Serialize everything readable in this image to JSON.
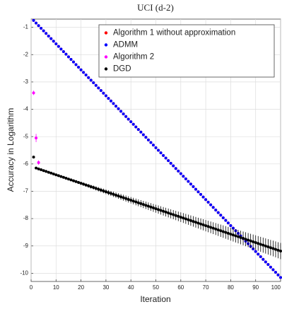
{
  "chart_data": {
    "type": "scatter",
    "title": "UCI (d-2)",
    "x_label": "Iteration",
    "y_label": "Accuracy in Logarithm",
    "xlim": [
      0,
      100
    ],
    "ylim": [
      -10.3,
      -0.7
    ],
    "xticks": [
      0,
      10,
      20,
      30,
      40,
      50,
      60,
      70,
      80,
      90,
      100
    ],
    "yticks": [
      -1,
      -2,
      -3,
      -4,
      -5,
      -6,
      -7,
      -8,
      -9,
      -10
    ],
    "grid": true,
    "legend": "top-right",
    "x": [
      1,
      2,
      3,
      4,
      5,
      6,
      7,
      8,
      9,
      10,
      11,
      12,
      13,
      14,
      15,
      16,
      17,
      18,
      19,
      20,
      21,
      22,
      23,
      24,
      25,
      26,
      27,
      28,
      29,
      30,
      31,
      32,
      33,
      34,
      35,
      36,
      37,
      38,
      39,
      40,
      41,
      42,
      43,
      44,
      45,
      46,
      47,
      48,
      49,
      50,
      51,
      52,
      53,
      54,
      55,
      56,
      57,
      58,
      59,
      60,
      61,
      62,
      63,
      64,
      65,
      66,
      67,
      68,
      69,
      70,
      71,
      72,
      73,
      74,
      75,
      76,
      77,
      78,
      79,
      80,
      81,
      82,
      83,
      84,
      85,
      86,
      87,
      88,
      89,
      90,
      91,
      92,
      93,
      94,
      95,
      96,
      97,
      98,
      99,
      100
    ],
    "series": [
      {
        "name": "Algorithm 1 without approximation",
        "color": "#ff0000",
        "values": [
          -0.75,
          -0.845,
          -0.94,
          -1.035,
          -1.13,
          -1.225,
          -1.32,
          -1.415,
          -1.51,
          -1.605,
          -1.7,
          -1.795,
          -1.89,
          -1.985,
          -2.08,
          -2.175,
          -2.27,
          -2.365,
          -2.46,
          -2.555,
          -2.65,
          -2.745,
          -2.84,
          -2.935,
          -3.03,
          -3.125,
          -3.22,
          -3.315,
          -3.41,
          -3.505,
          -3.6,
          -3.695,
          -3.79,
          -3.885,
          -3.98,
          -4.075,
          -4.17,
          -4.265,
          -4.36,
          -4.455,
          -4.55,
          -4.645,
          -4.74,
          -4.835,
          -4.93,
          -5.025,
          -5.12,
          -5.215,
          -5.31,
          -5.405,
          -5.5,
          -5.595,
          -5.69,
          -5.785,
          -5.88,
          -5.975,
          -6.07,
          -6.165,
          -6.26,
          -6.355,
          -6.45,
          -6.545,
          -6.64,
          -6.735,
          -6.83,
          -6.925,
          -7.02,
          -7.115,
          -7.21,
          -7.305,
          -7.4,
          -7.495,
          -7.59,
          -7.685,
          -7.78,
          -7.875,
          -7.97,
          -8.065,
          -8.16,
          -8.255,
          -8.35,
          -8.445,
          -8.54,
          -8.635,
          -8.73,
          -8.825,
          -8.92,
          -9.015,
          -9.11,
          -9.205,
          -9.3,
          -9.395,
          -9.49,
          -9.585,
          -9.68,
          -9.775,
          -9.87,
          -9.965,
          -10.06,
          -10.155
        ]
      },
      {
        "name": "ADMM",
        "color": "#0000ff",
        "values": [
          -0.75,
          -0.845,
          -0.94,
          -1.035,
          -1.13,
          -1.225,
          -1.32,
          -1.415,
          -1.51,
          -1.605,
          -1.7,
          -1.795,
          -1.89,
          -1.985,
          -2.08,
          -2.175,
          -2.27,
          -2.365,
          -2.46,
          -2.555,
          -2.65,
          -2.745,
          -2.84,
          -2.935,
          -3.03,
          -3.125,
          -3.22,
          -3.315,
          -3.41,
          -3.505,
          -3.6,
          -3.695,
          -3.79,
          -3.885,
          -3.98,
          -4.075,
          -4.17,
          -4.265,
          -4.36,
          -4.455,
          -4.55,
          -4.645,
          -4.74,
          -4.835,
          -4.93,
          -5.025,
          -5.12,
          -5.215,
          -5.31,
          -5.405,
          -5.5,
          -5.595,
          -5.69,
          -5.785,
          -5.88,
          -5.975,
          -6.07,
          -6.165,
          -6.26,
          -6.355,
          -6.45,
          -6.545,
          -6.64,
          -6.735,
          -6.83,
          -6.925,
          -7.02,
          -7.115,
          -7.21,
          -7.305,
          -7.4,
          -7.495,
          -7.59,
          -7.685,
          -7.78,
          -7.875,
          -7.97,
          -8.065,
          -8.16,
          -8.255,
          -8.35,
          -8.445,
          -8.54,
          -8.635,
          -8.73,
          -8.825,
          -8.92,
          -9.015,
          -9.11,
          -9.205,
          -9.3,
          -9.395,
          -9.49,
          -9.585,
          -9.68,
          -9.775,
          -9.87,
          -9.965,
          -10.06,
          -10.155
        ]
      },
      {
        "name": "Algorithm 2",
        "color": "#ff00ff",
        "x": [
          1,
          2,
          3
        ],
        "values": [
          -3.4,
          -5.05,
          -5.95
        ],
        "errors": [
          0.08,
          0.15,
          0.08
        ]
      },
      {
        "name": "DGD",
        "color": "#000000",
        "values": [
          -5.75,
          -6.15,
          -6.181,
          -6.212,
          -6.243,
          -6.274,
          -6.305,
          -6.336,
          -6.367,
          -6.398,
          -6.429,
          -6.46,
          -6.491,
          -6.522,
          -6.553,
          -6.584,
          -6.615,
          -6.646,
          -6.677,
          -6.708,
          -6.739,
          -6.77,
          -6.801,
          -6.832,
          -6.863,
          -6.894,
          -6.925,
          -6.956,
          -6.987,
          -7.018,
          -7.049,
          -7.08,
          -7.111,
          -7.142,
          -7.173,
          -7.204,
          -7.235,
          -7.266,
          -7.297,
          -7.328,
          -7.359,
          -7.39,
          -7.421,
          -7.452,
          -7.483,
          -7.514,
          -7.545,
          -7.576,
          -7.607,
          -7.638,
          -7.669,
          -7.7,
          -7.731,
          -7.762,
          -7.793,
          -7.824,
          -7.855,
          -7.886,
          -7.917,
          -7.948,
          -7.979,
          -8.01,
          -8.041,
          -8.072,
          -8.103,
          -8.134,
          -8.165,
          -8.196,
          -8.227,
          -8.258,
          -8.289,
          -8.32,
          -8.351,
          -8.382,
          -8.413,
          -8.444,
          -8.475,
          -8.506,
          -8.537,
          -8.568,
          -8.599,
          -8.63,
          -8.661,
          -8.692,
          -8.723,
          -8.754,
          -8.785,
          -8.816,
          -8.847,
          -8.878,
          -8.909,
          -8.94,
          -8.971,
          -9.002,
          -9.033,
          -9.064,
          -9.095,
          -9.126,
          -9.157,
          -9.188
        ],
        "errors": [
          0,
          0.003,
          0.006,
          0.009,
          0.012,
          0.015,
          0.018,
          0.021,
          0.024,
          0.027,
          0.03,
          0.033,
          0.036,
          0.039,
          0.042,
          0.045,
          0.048,
          0.051,
          0.054,
          0.057,
          0.06,
          0.063,
          0.066,
          0.069,
          0.072,
          0.075,
          0.078,
          0.081,
          0.084,
          0.087,
          0.09,
          0.093,
          0.096,
          0.099,
          0.102,
          0.105,
          0.108,
          0.111,
          0.114,
          0.117,
          0.12,
          0.123,
          0.126,
          0.129,
          0.132,
          0.135,
          0.138,
          0.141,
          0.144,
          0.147,
          0.15,
          0.153,
          0.156,
          0.159,
          0.162,
          0.165,
          0.168,
          0.171,
          0.174,
          0.177,
          0.18,
          0.183,
          0.186,
          0.189,
          0.192,
          0.195,
          0.198,
          0.201,
          0.204,
          0.207,
          0.21,
          0.213,
          0.216,
          0.219,
          0.222,
          0.225,
          0.228,
          0.231,
          0.234,
          0.237,
          0.24,
          0.243,
          0.246,
          0.249,
          0.252,
          0.255,
          0.258,
          0.261,
          0.264,
          0.267,
          0.27,
          0.273,
          0.276,
          0.279,
          0.282,
          0.285,
          0.288,
          0.291,
          0.294,
          0.297
        ]
      }
    ]
  }
}
